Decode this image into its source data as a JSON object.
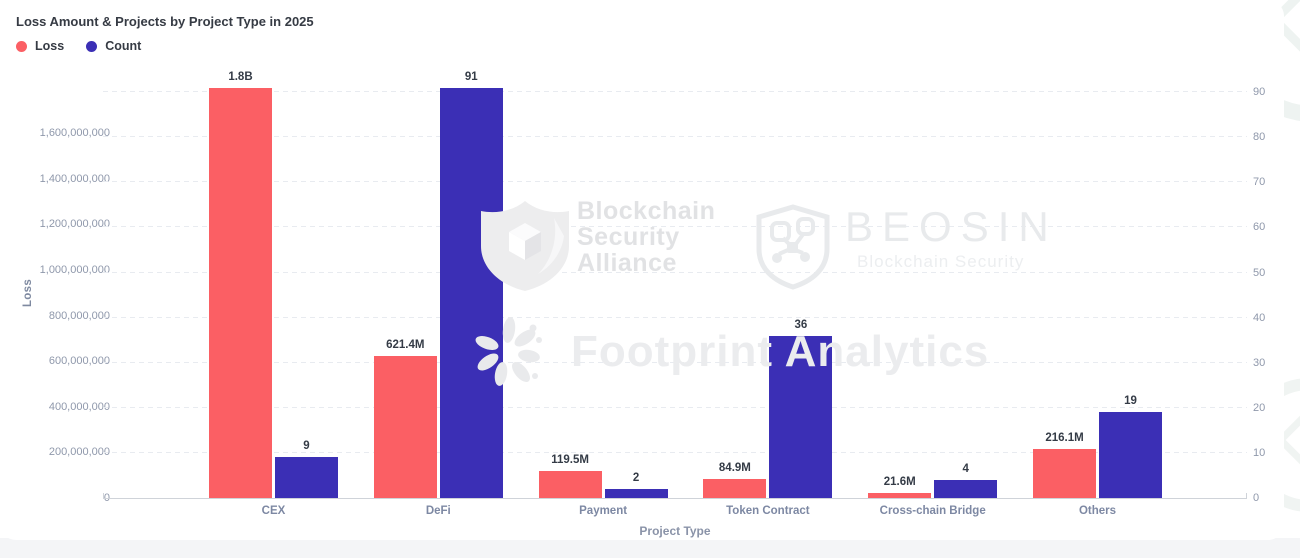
{
  "page": {
    "card_bg": "#ffffff",
    "footer_strip_color": "#f4f5f7"
  },
  "header": {
    "title": "Loss Amount & Projects by Project Type in 2025"
  },
  "legend": {
    "items": [
      {
        "label": "Loss",
        "color": "#FB5F64"
      },
      {
        "label": "Count",
        "color": "#3B2FB5"
      }
    ]
  },
  "chart_data": {
    "type": "bar",
    "title": "Loss Amount & Projects by Project Type in 2025",
    "categories": [
      "CEX",
      "DeFi",
      "Payment",
      "Token Contract",
      "Cross-chain Bridge",
      "Others"
    ],
    "series": [
      {
        "name": "Loss",
        "yaxis": "left",
        "color": "#FB5F64",
        "values": [
          1800000000,
          621400000,
          119500000,
          84900000,
          21600000,
          216100000
        ],
        "data_labels": [
          "1.8B",
          "621.4M",
          "119.5M",
          "84.9M",
          "21.6M",
          "216.1M"
        ]
      },
      {
        "name": "Count",
        "yaxis": "right",
        "color": "#3B2FB5",
        "values": [
          9,
          91,
          2,
          36,
          4,
          19
        ],
        "data_labels": [
          "9",
          "91",
          "2",
          "36",
          "4",
          "19"
        ]
      }
    ],
    "left_axis": {
      "title": "Loss",
      "min": 0,
      "max": 1800000000,
      "tick_step": 200000000,
      "tick_labels": [
        "0",
        "200,000,000",
        "400,000,000",
        "600,000,000",
        "800,000,000",
        "1,000,000,000",
        "1,200,000,000",
        "1,400,000,000",
        "1,600,000,000"
      ]
    },
    "right_axis": {
      "min": 0,
      "max": 90,
      "tick_step": 10,
      "tick_labels": [
        "0",
        "10",
        "20",
        "30",
        "40",
        "50",
        "60",
        "70",
        "80",
        "90"
      ]
    },
    "xlabel": "Project Type",
    "grid": {
      "style": "dashed",
      "color": "#E8EBF0",
      "orientation": "horizontal"
    },
    "legend_position": "top-left"
  },
  "watermarks": {
    "bsa": {
      "line1": "Blockchain",
      "line2": "Security",
      "line3": "Alliance"
    },
    "beosin": {
      "name": "BEOSIN",
      "tagline": "Blockchain Security"
    },
    "footprint": {
      "name": "Footprint Analytics"
    }
  }
}
